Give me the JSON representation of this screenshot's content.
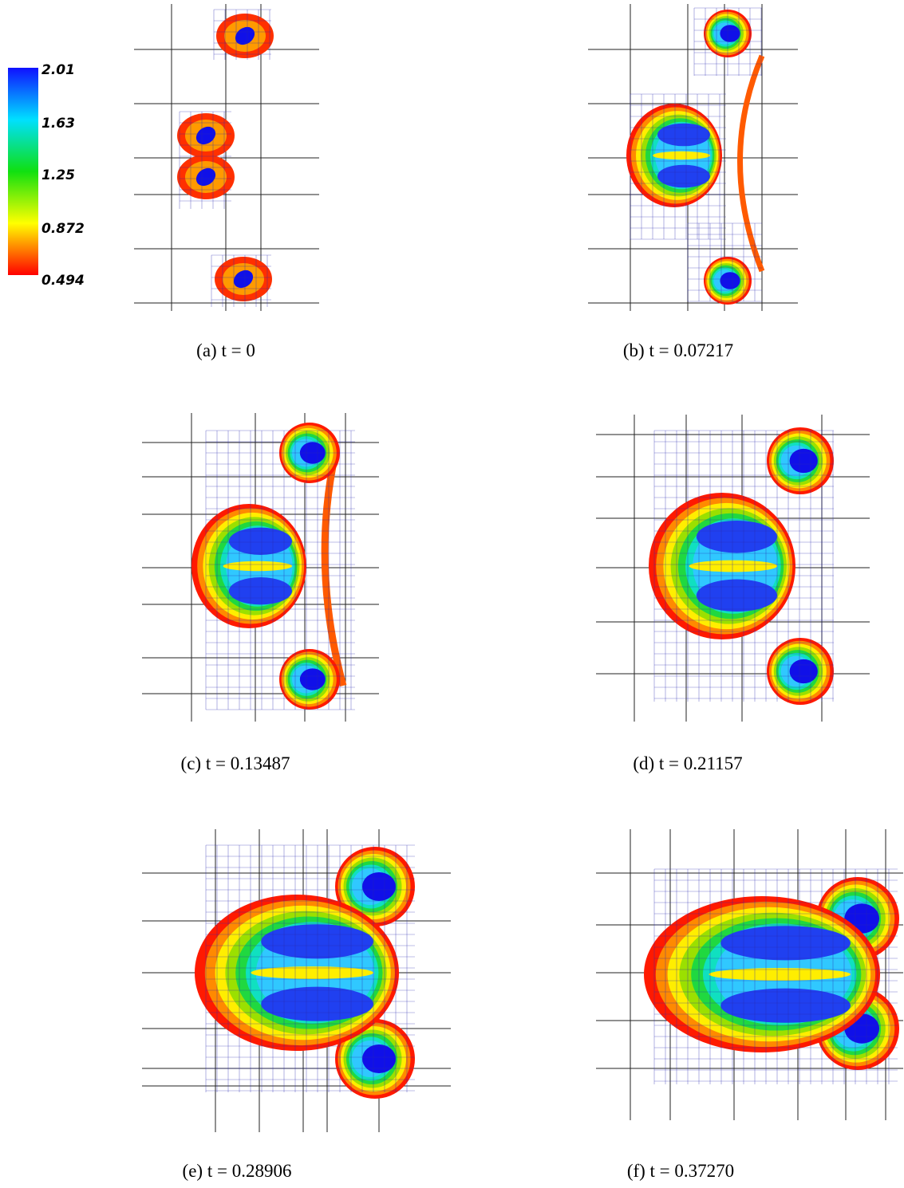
{
  "colorbar": {
    "ticks": [
      "2.01",
      "1.63",
      "1.25",
      "0.872",
      "0.494"
    ]
  },
  "panels": [
    {
      "label": "(a)",
      "expression": "t = 0"
    },
    {
      "label": "(b)",
      "expression": "t = 0.07217"
    },
    {
      "label": "(c)",
      "expression": "t = 0.13487"
    },
    {
      "label": "(d)",
      "expression": "t = 0.21157"
    },
    {
      "label": "(e)",
      "expression": "t = 0.28906"
    },
    {
      "label": "(f)",
      "expression": "t = 0.37270"
    }
  ]
}
